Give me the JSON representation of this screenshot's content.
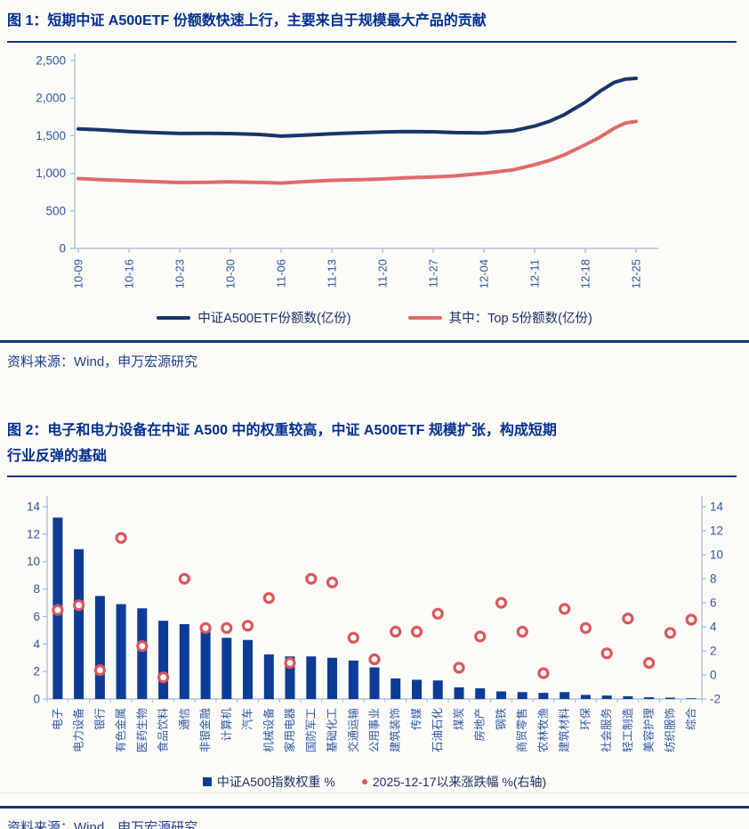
{
  "source_note": "资料来源：Wind，申万宏源研究",
  "colors": {
    "title_navy": "#012F8F",
    "separator_navy": "#14327E",
    "axis_line": "#A3B8D8",
    "tick_label_blue": "#2C56A5",
    "source_navy": "#1E3D91",
    "page_background": "#FCFBF7",
    "etf_line_navy": "#17356C",
    "top5_line_red": "#E06A6A",
    "bar_blue": "#0C3C96",
    "dot_red": "#D8585C"
  },
  "chart_data": [
    {
      "type": "line",
      "title": "图 1：短期中证 A500ETF 份额数快速上行，主要来自于规模最大产品的贡献",
      "xlabel": "",
      "ylabel": "",
      "ylim": [
        0,
        2500
      ],
      "y_ticks": [
        0,
        500,
        1000,
        1500,
        2000,
        2500
      ],
      "x_tick_labels": [
        "10-09",
        "10-16",
        "10-23",
        "10-30",
        "11-06",
        "11-13",
        "11-20",
        "11-27",
        "12-04",
        "12-11",
        "12-18",
        "12-25"
      ],
      "x_tick_days": [
        0,
        7,
        14,
        21,
        28,
        35,
        42,
        49,
        56,
        63,
        70,
        77
      ],
      "x_days": [
        0,
        3,
        7,
        10,
        14,
        18,
        21,
        25,
        28,
        31,
        35,
        39,
        42,
        45,
        49,
        52,
        56,
        58,
        60,
        63,
        65,
        67,
        70,
        72,
        74,
        75.5,
        77
      ],
      "grid": false,
      "legend_position": "bottom",
      "series": [
        {
          "name": "中证A500ETF份额数(亿份)",
          "color": "#17356C",
          "values": [
            1590,
            1578,
            1556,
            1544,
            1530,
            1532,
            1528,
            1516,
            1494,
            1506,
            1526,
            1540,
            1548,
            1556,
            1552,
            1542,
            1537,
            1552,
            1565,
            1628,
            1690,
            1775,
            1945,
            2090,
            2210,
            2252,
            2263
          ]
        },
        {
          "name": "其中：Top 5份额数(亿份)",
          "color": "#E06A6A",
          "values": [
            930,
            916,
            900,
            890,
            877,
            880,
            886,
            878,
            870,
            888,
            906,
            916,
            924,
            938,
            952,
            966,
            1000,
            1022,
            1045,
            1115,
            1170,
            1240,
            1380,
            1480,
            1600,
            1668,
            1690
          ]
        }
      ]
    },
    {
      "type": "bar+scatter",
      "title": "图 2：电子和电力设备在中证 A500 中的权重较高，中证 A500ETF 规模扩张，构成短期行业反弹的基础",
      "title_lines": [
        "图 2：电子和电力设备在中证 A500 中的权重较高，中证 A500ETF 规模扩张，构成短期",
        "行业反弹的基础"
      ],
      "categories": [
        "电子",
        "电力设备",
        "银行",
        "有色金属",
        "医药生物",
        "食品饮料",
        "通信",
        "非银金融",
        "计算机",
        "汽车",
        "机械设备",
        "家用电器",
        "国防军工",
        "基础化工",
        "交通运输",
        "公用事业",
        "建筑装饰",
        "传媒",
        "石油石化",
        "煤炭",
        "房地产",
        "钢铁",
        "商贸零售",
        "农林牧渔",
        "建筑材料",
        "环保",
        "社会服务",
        "轻工制造",
        "美容护理",
        "纺织服饰",
        "综合"
      ],
      "left_ylim": [
        0,
        14
      ],
      "right_ylim": [
        -2,
        14
      ],
      "left_ticks": [
        0,
        2,
        4,
        6,
        8,
        10,
        12,
        14
      ],
      "right_ticks": [
        -2,
        0,
        2,
        4,
        6,
        8,
        10,
        12,
        14
      ],
      "grid": false,
      "legend_position": "bottom",
      "series": [
        {
          "name": "中证A500指数权重 %",
          "type": "bar",
          "axis": "left",
          "color": "#0C3C96",
          "values": [
            13.2,
            10.9,
            7.5,
            6.9,
            6.6,
            5.7,
            5.45,
            5.2,
            4.45,
            4.3,
            3.25,
            3.1,
            3.1,
            3.0,
            2.8,
            2.3,
            1.5,
            1.4,
            1.35,
            0.85,
            0.78,
            0.55,
            0.5,
            0.45,
            0.5,
            0.3,
            0.25,
            0.2,
            0.12,
            0.1,
            0.05
          ]
        },
        {
          "name": "2025-12-17以来涨跌幅 %(右轴)",
          "type": "scatter",
          "axis": "right",
          "color": "#D8585C",
          "values": [
            5.4,
            5.8,
            0.4,
            11.4,
            2.4,
            -0.2,
            8.0,
            3.9,
            3.9,
            4.1,
            6.4,
            1.0,
            8.0,
            7.7,
            3.1,
            1.3,
            3.6,
            3.6,
            5.1,
            0.6,
            3.2,
            6.0,
            3.6,
            0.15,
            5.5,
            3.9,
            1.8,
            4.7,
            1.0,
            3.5,
            4.6
          ]
        }
      ]
    }
  ]
}
